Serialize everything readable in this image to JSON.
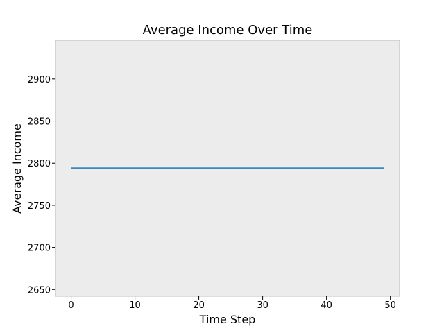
{
  "chart_data": {
    "type": "line",
    "title": "Average Income Over Time",
    "xlabel": "Time Step",
    "ylabel": "Average Income",
    "xlim": [
      -2.45,
      51.45
    ],
    "ylim": [
      2642,
      2946
    ],
    "xticks": [
      0,
      10,
      20,
      30,
      40,
      50
    ],
    "yticks": [
      2650,
      2700,
      2750,
      2800,
      2850,
      2900
    ],
    "grid": false,
    "series": [
      {
        "color": "#3a87c2",
        "x": [
          0,
          1,
          2,
          3,
          4,
          5,
          6,
          7,
          8,
          9,
          10,
          11,
          12,
          13,
          14,
          15,
          16,
          17,
          18,
          19,
          20,
          21,
          22,
          23,
          24,
          25,
          26,
          27,
          28,
          29,
          30,
          31,
          32,
          33,
          34,
          35,
          36,
          37,
          38,
          39,
          40,
          41,
          42,
          43,
          44,
          45,
          46,
          47,
          48,
          49
        ],
        "values": [
          2794,
          2794,
          2794,
          2794,
          2794,
          2794,
          2794,
          2794,
          2794,
          2794,
          2794,
          2794,
          2794,
          2794,
          2794,
          2794,
          2794,
          2794,
          2794,
          2794,
          2794,
          2794,
          2794,
          2794,
          2794,
          2794,
          2794,
          2794,
          2794,
          2794,
          2794,
          2794,
          2794,
          2794,
          2794,
          2794,
          2794,
          2794,
          2794,
          2794,
          2794,
          2794,
          2794,
          2794,
          2794,
          2794,
          2794,
          2794,
          2794,
          2794
        ]
      }
    ]
  },
  "style": {
    "plot_background": "#ececec",
    "plot_border": "#bdbdbd",
    "figure_background": "#ffffff"
  }
}
